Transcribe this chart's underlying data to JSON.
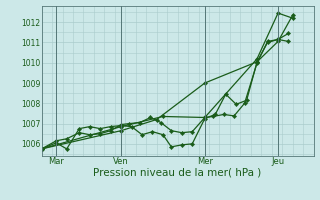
{
  "background_color": "#cce8e8",
  "grid_color": "#aacccc",
  "line_color": "#1a5c1a",
  "marker_color": "#1a5c1a",
  "xlabel": "Pression niveau de la mer( hPa )",
  "xlim": [
    0,
    13.0
  ],
  "ylim": [
    1005.4,
    1012.8
  ],
  "yticks": [
    1006,
    1007,
    1008,
    1009,
    1010,
    1011,
    1012
  ],
  "xtick_positions": [
    0.7,
    3.8,
    7.8,
    11.3
  ],
  "xtick_labels": [
    "Mar",
    "Ven",
    "Mer",
    "Jeu"
  ],
  "vlines": [
    0.7,
    3.8,
    7.8,
    11.3
  ],
  "series": [
    [
      0.0,
      1005.75,
      0.7,
      1006.15,
      1.2,
      1006.25,
      1.8,
      1006.55,
      2.3,
      1006.45,
      2.8,
      1006.5,
      3.3,
      1006.65,
      3.8,
      1006.95,
      4.2,
      1007.0,
      4.7,
      1007.05,
      5.2,
      1007.3,
      5.7,
      1007.05,
      6.2,
      1006.65,
      6.7,
      1006.55,
      7.2,
      1006.6,
      7.8,
      1007.3,
      8.2,
      1007.35,
      8.7,
      1007.45,
      9.2,
      1007.38,
      9.7,
      1008.0,
      10.3,
      1010.0,
      10.8,
      1011.05,
      11.3,
      1011.15,
      11.8,
      1011.45
    ],
    [
      0.0,
      1005.75,
      0.7,
      1006.05,
      1.2,
      1005.75,
      1.8,
      1006.75,
      2.3,
      1006.85,
      2.8,
      1006.75,
      3.3,
      1006.85,
      3.8,
      1006.9,
      4.3,
      1006.85,
      4.8,
      1006.45,
      5.3,
      1006.6,
      5.8,
      1006.45,
      6.2,
      1005.85,
      6.7,
      1005.95,
      7.2,
      1006.0,
      7.8,
      1007.25,
      8.3,
      1007.45,
      8.8,
      1008.45,
      9.3,
      1007.95,
      9.8,
      1008.15,
      10.3,
      1010.05,
      10.8,
      1011.0,
      11.3,
      1011.15,
      11.8,
      1011.05
    ],
    [
      0.0,
      1005.75,
      3.8,
      1006.65,
      5.5,
      1007.2,
      7.8,
      1009.0,
      10.3,
      1010.05,
      11.3,
      1011.05,
      12.0,
      1012.35
    ],
    [
      0.0,
      1005.75,
      3.8,
      1006.85,
      5.8,
      1007.35,
      7.8,
      1007.3,
      10.3,
      1010.2,
      11.3,
      1012.45,
      12.0,
      1012.2
    ]
  ]
}
